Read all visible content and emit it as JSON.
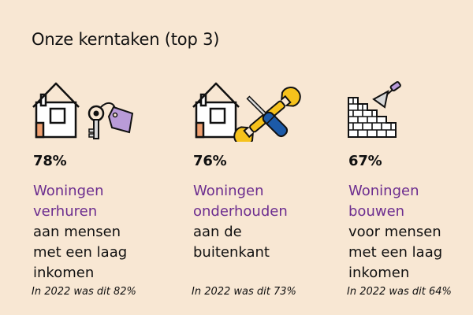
{
  "heading": "Onze kerntaken (top 3)",
  "colors": {
    "background": "#f8e7d3",
    "accent_purple": "#6c2d8f",
    "yellow": "#f6c21c",
    "blue": "#1c5aa8",
    "tag_lavender": "#b99bd8",
    "door_orange": "#f0a070"
  },
  "tasks": [
    {
      "icon": "house-with-keys-icon",
      "percentage": "78%",
      "highlight": "Woningen\nverhuren",
      "detail": "aan mensen\nmet een laag\ninkomen",
      "previous": "In 2022 was dit 82%"
    },
    {
      "icon": "house-with-tools-icon",
      "percentage": "76%",
      "highlight": "Woningen\nonderhouden",
      "detail": "aan de\nbuitenkant",
      "previous": "In 2022 was dit 73%"
    },
    {
      "icon": "brick-wall-trowel-icon",
      "percentage": "67%",
      "highlight": "Woningen\nbouwen",
      "detail": "voor mensen\nmet een laag\ninkomen",
      "previous": "In 2022 was dit 64%"
    }
  ]
}
